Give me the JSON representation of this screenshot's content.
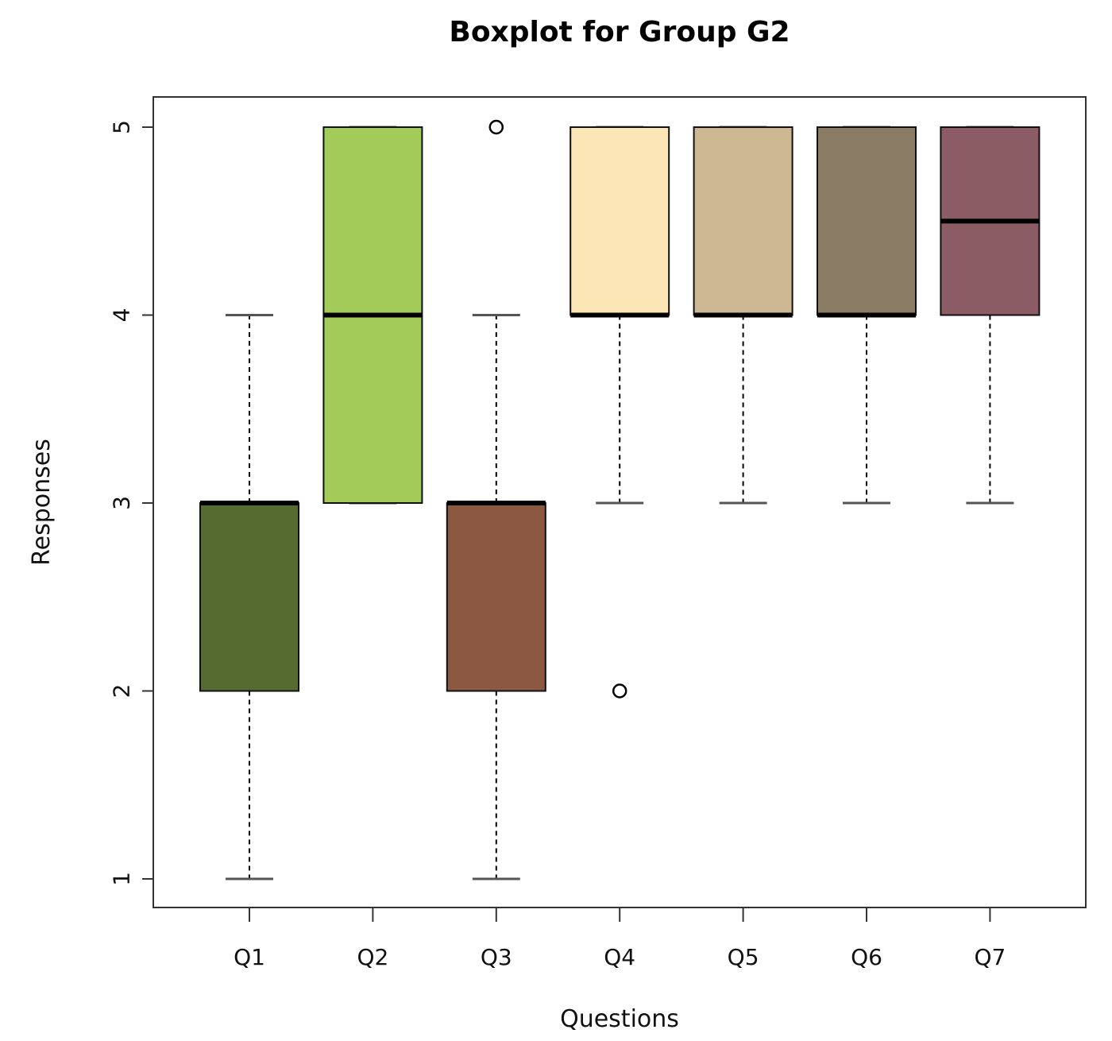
{
  "chart_data": {
    "type": "boxplot",
    "title": "Boxplot for Group G2",
    "xlabel": "Questions",
    "ylabel": "Responses",
    "ylim": [
      1,
      5
    ],
    "yticks": [
      "1",
      "2",
      "3",
      "4",
      "5"
    ],
    "grid": false,
    "categories": [
      "Q1",
      "Q2",
      "Q3",
      "Q4",
      "Q5",
      "Q6",
      "Q7"
    ],
    "boxes": [
      {
        "name": "Q1",
        "whisker_low": 1,
        "q1": 2,
        "median": 3,
        "q3": 3,
        "whisker_high": 4,
        "outliers": [],
        "color": "#566b30"
      },
      {
        "name": "Q2",
        "whisker_low": 3,
        "q1": 3,
        "median": 4,
        "q3": 5,
        "whisker_high": 5,
        "outliers": [],
        "color": "#a3cb5a"
      },
      {
        "name": "Q3",
        "whisker_low": 1,
        "q1": 2,
        "median": 3,
        "q3": 3,
        "whisker_high": 4,
        "outliers": [
          5
        ],
        "color": "#8b5842"
      },
      {
        "name": "Q4",
        "whisker_low": 3,
        "q1": 4,
        "median": 4,
        "q3": 5,
        "whisker_high": 5,
        "outliers": [
          2
        ],
        "color": "#fde6b5"
      },
      {
        "name": "Q5",
        "whisker_low": 3,
        "q1": 4,
        "median": 4,
        "q3": 5,
        "whisker_high": 5,
        "outliers": [],
        "color": "#cdb893"
      },
      {
        "name": "Q6",
        "whisker_low": 3,
        "q1": 4,
        "median": 4,
        "q3": 5,
        "whisker_high": 5,
        "outliers": [],
        "color": "#8b7d65"
      },
      {
        "name": "Q7",
        "whisker_low": 3,
        "q1": 4,
        "median": 4.5,
        "q3": 5,
        "whisker_high": 5,
        "outliers": [],
        "color": "#8b5c63"
      }
    ]
  }
}
